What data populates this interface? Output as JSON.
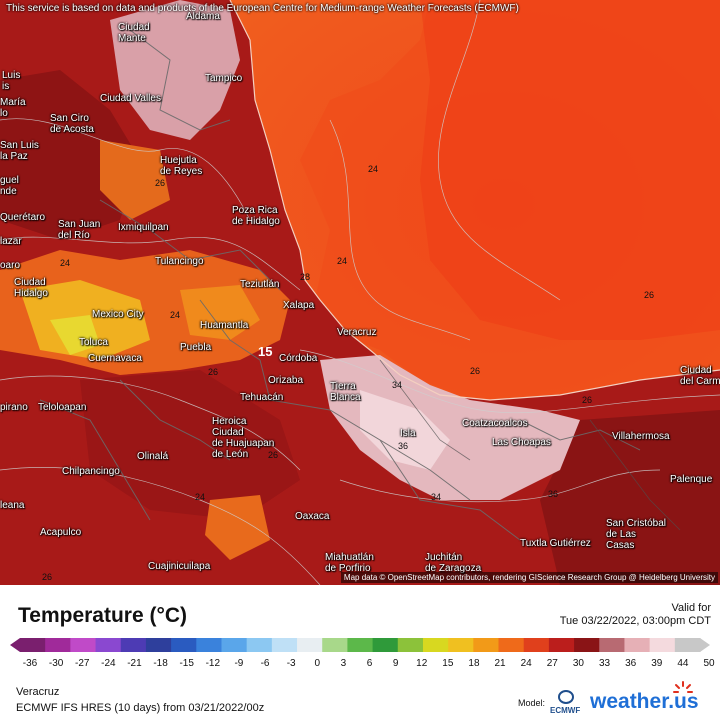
{
  "banner": "This service is based on data and products of the European Centre for Medium-range Weather Forecasts (ECMWF)",
  "attribution": "Map data © OpenStreetMap contributors, rendering GIScience Research Group @ Heidelberg University",
  "legend": {
    "title": "Temperature (°C)",
    "valid_label": "Valid for",
    "valid_time": "Tue 03/22/2022, 03:00pm CDT",
    "ticks": [
      "-36",
      "-30",
      "-27",
      "-24",
      "-21",
      "-18",
      "-15",
      "-12",
      "-9",
      "-6",
      "-3",
      "0",
      "3",
      "6",
      "9",
      "12",
      "15",
      "18",
      "21",
      "24",
      "27",
      "30",
      "33",
      "36",
      "39",
      "44",
      "50"
    ],
    "colors": [
      "#7a1f6e",
      "#a02a9a",
      "#c04ac8",
      "#8a48d0",
      "#4d3bb4",
      "#2e3f9c",
      "#2a5bc0",
      "#3a82dc",
      "#5aa6ea",
      "#8cc8f2",
      "#bfe0f6",
      "#e8eef2",
      "#a8d88a",
      "#5cb84a",
      "#2f9a3a",
      "#8cc23a",
      "#d8d820",
      "#f0c020",
      "#f29a18",
      "#ef6a1a",
      "#e0401c",
      "#bb1e1c",
      "#8a1416",
      "#b86a72",
      "#e6b0b6",
      "#f4dade",
      "#c8c8c8"
    ]
  },
  "location": "Veracruz",
  "model_run": "ECMWF IFS HRES (10 days) from 03/21/2022/00z",
  "model_label": "Model:",
  "ecmwf_logo_text": "ECMWF",
  "brand": "weather.us",
  "cities": [
    {
      "id": "aldama",
      "name": "Aldama"
    },
    {
      "id": "ciudad-mante",
      "name": "Ciudad\nMante"
    },
    {
      "id": "tampico",
      "name": "Tampico"
    },
    {
      "id": "luis",
      "name": "Luis\nis"
    },
    {
      "id": "maria",
      "name": "María\nlo"
    },
    {
      "id": "ciudad-valles",
      "name": "Ciudad Valles"
    },
    {
      "id": "san-ciro",
      "name": "San Ciro\nde Acosta"
    },
    {
      "id": "san-luis-la-paz",
      "name": "San Luis\nla Paz"
    },
    {
      "id": "huejutla",
      "name": "Huejutla\nde Reyes"
    },
    {
      "id": "miguel",
      "name": "guel\nnde"
    },
    {
      "id": "poza-rica",
      "name": "Poza Rica\nde Hidalgo"
    },
    {
      "id": "queretaro",
      "name": "Querétaro"
    },
    {
      "id": "san-juan-del-rio",
      "name": "San Juan\ndel Río"
    },
    {
      "id": "ixmiquilpan",
      "name": "Ixmiquilpan"
    },
    {
      "id": "lazar",
      "name": "lazar"
    },
    {
      "id": "tulancingo",
      "name": "Tulancingo"
    },
    {
      "id": "teziutlan",
      "name": "Teziutlán"
    },
    {
      "id": "oaro",
      "name": "oaro"
    },
    {
      "id": "ciudad-hidalgo",
      "name": "Ciudad\nHidalgo"
    },
    {
      "id": "xalapa",
      "name": "Xalapa"
    },
    {
      "id": "mexico-city",
      "name": "Mexico City"
    },
    {
      "id": "huamantla",
      "name": "Huamantla"
    },
    {
      "id": "veracruz",
      "name": "Veracruz"
    },
    {
      "id": "toluca",
      "name": "Toluca"
    },
    {
      "id": "cuernavaca",
      "name": "Cuernavaca"
    },
    {
      "id": "puebla",
      "name": "Puebla"
    },
    {
      "id": "cordoba",
      "name": "Córdoba"
    },
    {
      "id": "orizaba",
      "name": "Orizaba"
    },
    {
      "id": "tierra-blanca",
      "name": "Tierra\nBlanca"
    },
    {
      "id": "ciudad-del-carmen",
      "name": "Ciudad\ndel Carme"
    },
    {
      "id": "tehuacan",
      "name": "Tehuacán"
    },
    {
      "id": "teloloapan",
      "name": "Teloloapan"
    },
    {
      "id": "pirano",
      "name": "pirano"
    },
    {
      "id": "coatzacoalcos",
      "name": "Coatzacoalcos"
    },
    {
      "id": "isla",
      "name": "Isla"
    },
    {
      "id": "las-choapas",
      "name": "Las Choapas"
    },
    {
      "id": "villahermosa",
      "name": "Villahermosa"
    },
    {
      "id": "heroica",
      "name": "Heroica\nCiudad\nde Huajuapan\nde León"
    },
    {
      "id": "olinala",
      "name": "Olinalá"
    },
    {
      "id": "chilpancingo",
      "name": "Chilpancingo"
    },
    {
      "id": "palenque",
      "name": "Palenque"
    },
    {
      "id": "leana",
      "name": "leana"
    },
    {
      "id": "oaxaca",
      "name": "Oaxaca"
    },
    {
      "id": "acapulco",
      "name": "Acapulco"
    },
    {
      "id": "san-cristobal",
      "name": "San Cristóbal\nde Las\nCasas"
    },
    {
      "id": "miahuatlan",
      "name": "Miahuatlán\nde Porfirio"
    },
    {
      "id": "juchitan",
      "name": "Juchitán\nde Zaragoza"
    },
    {
      "id": "tuxtla",
      "name": "Tuxtla Gutiérrez"
    },
    {
      "id": "cuajinicuilapa",
      "name": "Cuajinicuilapa"
    }
  ],
  "contour_labels": [
    "24",
    "26",
    "24",
    "24",
    "24",
    "26",
    "26",
    "26",
    "26",
    "28",
    "34",
    "15",
    "36",
    "34",
    "36",
    "24",
    "26",
    "26"
  ]
}
